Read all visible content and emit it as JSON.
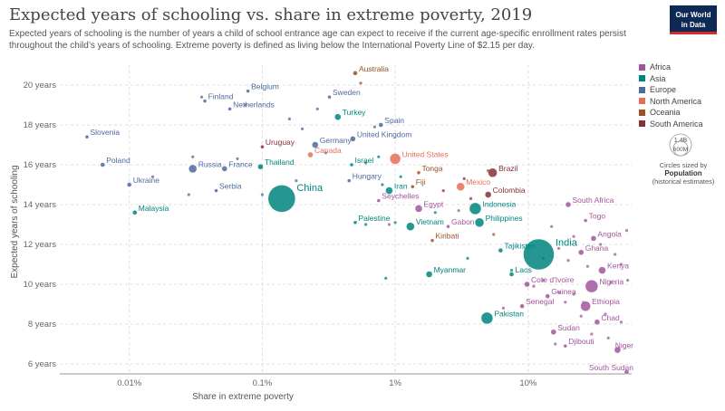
{
  "header": {
    "title": "Expected years of schooling vs. share in extreme poverty, 2019",
    "subtitle": "Expected years of schooling is the number of years a child of school entrance age can expect to receive if the current age-specific enrollment rates persist throughout the child’s years of schooling. Extreme poverty is defined as living below the International Poverty Line of $2.15 per day.",
    "logo_line1": "Our World",
    "logo_line2": "in Data"
  },
  "legend": {
    "items": [
      {
        "label": "Africa",
        "color": "#a2559c"
      },
      {
        "label": "Asia",
        "color": "#00847e"
      },
      {
        "label": "Europe",
        "color": "#4c6a9c"
      },
      {
        "label": "North America",
        "color": "#e56e5a"
      },
      {
        "label": "Oceania",
        "color": "#9a5129"
      },
      {
        "label": "South America",
        "color": "#883039"
      }
    ],
    "size_big": "1.4B",
    "size_small": "600M",
    "size_caption": "Circles sized by",
    "size_title": "Population",
    "size_sub": "(historical estimates)"
  },
  "chart_data": {
    "type": "scatter",
    "xscale": "log",
    "xlabel": "Share in extreme poverty",
    "ylabel": "Expected years of schooling",
    "xlim": [
      0.003,
      60
    ],
    "ylim": [
      5.5,
      21
    ],
    "xticks": [
      {
        "v": 0.01,
        "label": "0.01%"
      },
      {
        "v": 0.1,
        "label": "0.1%"
      },
      {
        "v": 1,
        "label": "1%"
      },
      {
        "v": 10,
        "label": "10%"
      }
    ],
    "yticks": [
      {
        "v": 6,
        "label": "6 years"
      },
      {
        "v": 8,
        "label": "8 years"
      },
      {
        "v": 10,
        "label": "10 years"
      },
      {
        "v": 12,
        "label": "12 years"
      },
      {
        "v": 14,
        "label": "14 years"
      },
      {
        "v": 16,
        "label": "16 years"
      },
      {
        "v": 18,
        "label": "18 years"
      },
      {
        "v": 20,
        "label": "20 years"
      }
    ],
    "grid": true,
    "points": [
      {
        "name": "Australia",
        "x": 0.5,
        "y": 20.6,
        "r": "Oceania",
        "s": 2.5
      },
      {
        "name": "Belgium",
        "x": 0.078,
        "y": 19.7,
        "r": "Europe",
        "s": 2
      },
      {
        "name": "Sweden",
        "x": 0.32,
        "y": 19.4,
        "r": "Europe",
        "s": 2
      },
      {
        "name": "Finland",
        "x": 0.037,
        "y": 19.2,
        "r": "Europe",
        "s": 2
      },
      {
        "name": "Netherlands",
        "x": 0.057,
        "y": 18.8,
        "r": "Europe",
        "s": 2
      },
      {
        "name": "Turkey",
        "x": 0.37,
        "y": 18.4,
        "r": "Asia",
        "s": 3.5
      },
      {
        "name": "Spain",
        "x": 0.78,
        "y": 18.0,
        "r": "Europe",
        "s": 2.5
      },
      {
        "name": "Slovenia",
        "x": 0.0048,
        "y": 17.4,
        "r": "Europe",
        "s": 2
      },
      {
        "name": "United Kingdom",
        "x": 0.48,
        "y": 17.3,
        "r": "Europe",
        "s": 3
      },
      {
        "name": "Germany",
        "x": 0.25,
        "y": 17.0,
        "r": "Europe",
        "s": 3.5
      },
      {
        "name": "Uruguay",
        "x": 0.1,
        "y": 16.9,
        "r": "South America",
        "s": 2
      },
      {
        "name": "Canada",
        "x": 0.23,
        "y": 16.5,
        "r": "North America",
        "s": 3
      },
      {
        "name": "United States",
        "x": 1.0,
        "y": 16.3,
        "r": "North America",
        "s": 6
      },
      {
        "name": "Israel",
        "x": 0.47,
        "y": 16.0,
        "r": "Asia",
        "s": 2
      },
      {
        "name": "Poland",
        "x": 0.0063,
        "y": 16.0,
        "r": "Europe",
        "s": 2.5
      },
      {
        "name": "Russia",
        "x": 0.03,
        "y": 15.8,
        "r": "Europe",
        "s": 4.5
      },
      {
        "name": "France",
        "x": 0.052,
        "y": 15.8,
        "r": "Europe",
        "s": 3
      },
      {
        "name": "Thailand",
        "x": 0.097,
        "y": 15.9,
        "r": "Asia",
        "s": 3
      },
      {
        "name": "Brazil",
        "x": 5.4,
        "y": 15.6,
        "r": "South America",
        "s": 5
      },
      {
        "name": "Tonga",
        "x": 1.5,
        "y": 15.6,
        "r": "Oceania",
        "s": 2
      },
      {
        "name": "Hungary",
        "x": 0.45,
        "y": 15.2,
        "r": "Europe",
        "s": 2
      },
      {
        "name": "Ukraine",
        "x": 0.01,
        "y": 15.0,
        "r": "Europe",
        "s": 2.5
      },
      {
        "name": "Fiji",
        "x": 1.35,
        "y": 14.9,
        "r": "Oceania",
        "s": 2
      },
      {
        "name": "Mexico",
        "x": 3.1,
        "y": 14.9,
        "r": "North America",
        "s": 4.5
      },
      {
        "name": "Serbia",
        "x": 0.045,
        "y": 14.7,
        "r": "Europe",
        "s": 2
      },
      {
        "name": "Iran",
        "x": 0.9,
        "y": 14.7,
        "r": "Asia",
        "s": 4
      },
      {
        "name": "Colombia",
        "x": 5.0,
        "y": 14.5,
        "r": "South America",
        "s": 3.5
      },
      {
        "name": "China",
        "x": 0.14,
        "y": 14.3,
        "r": "Asia",
        "s": 15
      },
      {
        "name": "Seychelles",
        "x": 0.75,
        "y": 14.2,
        "r": "Africa",
        "s": 2
      },
      {
        "name": "South Africa",
        "x": 20,
        "y": 14.0,
        "r": "Africa",
        "s": 3
      },
      {
        "name": "Egypt",
        "x": 1.5,
        "y": 13.8,
        "r": "Africa",
        "s": 4
      },
      {
        "name": "Indonesia",
        "x": 4.0,
        "y": 13.8,
        "r": "Asia",
        "s": 6.5
      },
      {
        "name": "Malaysia",
        "x": 0.011,
        "y": 13.6,
        "r": "Asia",
        "s": 2.5
      },
      {
        "name": "Philippines",
        "x": 4.3,
        "y": 13.1,
        "r": "Asia",
        "s": 5
      },
      {
        "name": "Palestine",
        "x": 0.5,
        "y": 13.1,
        "r": "Asia",
        "s": 2
      },
      {
        "name": "Vietnam",
        "x": 1.3,
        "y": 12.9,
        "r": "Asia",
        "s": 4.5
      },
      {
        "name": "Gabon",
        "x": 2.5,
        "y": 12.9,
        "r": "Africa",
        "s": 2
      },
      {
        "name": "Togo",
        "x": 27,
        "y": 13.2,
        "r": "Africa",
        "s": 2
      },
      {
        "name": "India",
        "x": 12,
        "y": 11.5,
        "r": "Asia",
        "s": 17
      },
      {
        "name": "Angola",
        "x": 31,
        "y": 12.3,
        "r": "Africa",
        "s": 3
      },
      {
        "name": "Kiribati",
        "x": 1.9,
        "y": 12.2,
        "r": "Oceania",
        "s": 2
      },
      {
        "name": "Tajikistan",
        "x": 6.2,
        "y": 11.7,
        "r": "Asia",
        "s": 2.5
      },
      {
        "name": "Ghana",
        "x": 25,
        "y": 11.6,
        "r": "Africa",
        "s": 3
      },
      {
        "name": "Kenya",
        "x": 36,
        "y": 10.7,
        "r": "Africa",
        "s": 4
      },
      {
        "name": "Myanmar",
        "x": 1.8,
        "y": 10.5,
        "r": "Asia",
        "s": 3.5
      },
      {
        "name": "Laos",
        "x": 7.5,
        "y": 10.5,
        "r": "Asia",
        "s": 2.5
      },
      {
        "name": "Cote d'Ivoire",
        "x": 9.8,
        "y": 10.0,
        "r": "Africa",
        "s": 3
      },
      {
        "name": "Nigeria",
        "x": 30,
        "y": 9.9,
        "r": "Africa",
        "s": 7
      },
      {
        "name": "Guinea",
        "x": 14,
        "y": 9.4,
        "r": "Africa",
        "s": 2.5
      },
      {
        "name": "Ethiopia",
        "x": 27,
        "y": 8.9,
        "r": "Africa",
        "s": 5.5
      },
      {
        "name": "Senegal",
        "x": 9.0,
        "y": 8.9,
        "r": "Africa",
        "s": 2.5
      },
      {
        "name": "Pakistan",
        "x": 4.9,
        "y": 8.3,
        "r": "Asia",
        "s": 6.5
      },
      {
        "name": "Chad",
        "x": 33,
        "y": 8.1,
        "r": "Africa",
        "s": 3
      },
      {
        "name": "Sudan",
        "x": 15.5,
        "y": 7.6,
        "r": "Africa",
        "s": 3
      },
      {
        "name": "Djibouti",
        "x": 19,
        "y": 6.9,
        "r": "Africa",
        "s": 2
      },
      {
        "name": "Niger",
        "x": 47,
        "y": 6.7,
        "r": "Africa",
        "s": 3.5
      },
      {
        "name": "South Sudan",
        "x": 55,
        "y": 5.6,
        "r": "Africa",
        "s": 2.5
      }
    ],
    "unlabeled": [
      {
        "x": 0.55,
        "y": 20.1,
        "r": "Oceania"
      },
      {
        "x": 0.035,
        "y": 19.4,
        "r": "Europe"
      },
      {
        "x": 0.075,
        "y": 19.0,
        "r": "Europe"
      },
      {
        "x": 0.16,
        "y": 18.3,
        "r": "Europe"
      },
      {
        "x": 0.26,
        "y": 18.8,
        "r": "Europe"
      },
      {
        "x": 0.7,
        "y": 17.9,
        "r": "Europe"
      },
      {
        "x": 0.2,
        "y": 17.8,
        "r": "Europe"
      },
      {
        "x": 0.03,
        "y": 16.4,
        "r": "Europe"
      },
      {
        "x": 0.065,
        "y": 16.3,
        "r": "Europe"
      },
      {
        "x": 0.3,
        "y": 16.6,
        "r": "Europe"
      },
      {
        "x": 0.6,
        "y": 16.1,
        "r": "Asia"
      },
      {
        "x": 0.75,
        "y": 16.4,
        "r": "Asia"
      },
      {
        "x": 0.18,
        "y": 15.2,
        "r": "Europe"
      },
      {
        "x": 0.015,
        "y": 15.4,
        "r": "Europe"
      },
      {
        "x": 0.028,
        "y": 14.5,
        "r": "Europe"
      },
      {
        "x": 0.1,
        "y": 14.5,
        "r": "Europe"
      },
      {
        "x": 0.8,
        "y": 15.0,
        "r": "Asia"
      },
      {
        "x": 1.1,
        "y": 15.4,
        "r": "Asia"
      },
      {
        "x": 2.3,
        "y": 14.7,
        "r": "South America"
      },
      {
        "x": 3.3,
        "y": 15.3,
        "r": "South America"
      },
      {
        "x": 5.0,
        "y": 15.7,
        "r": "South America"
      },
      {
        "x": 3.7,
        "y": 14.3,
        "r": "South America"
      },
      {
        "x": 0.9,
        "y": 13.0,
        "r": "Africa"
      },
      {
        "x": 1.0,
        "y": 13.1,
        "r": "Asia"
      },
      {
        "x": 2.0,
        "y": 13.6,
        "r": "Asia"
      },
      {
        "x": 0.6,
        "y": 13.0,
        "r": "Asia"
      },
      {
        "x": 3.0,
        "y": 13.7,
        "r": "Africa"
      },
      {
        "x": 15,
        "y": 12.9,
        "r": "Africa"
      },
      {
        "x": 22,
        "y": 12.4,
        "r": "Africa"
      },
      {
        "x": 35,
        "y": 12.0,
        "r": "Africa"
      },
      {
        "x": 45,
        "y": 11.5,
        "r": "Africa"
      },
      {
        "x": 55,
        "y": 12.7,
        "r": "Africa"
      },
      {
        "x": 17,
        "y": 11.8,
        "r": "Africa"
      },
      {
        "x": 13,
        "y": 11.3,
        "r": "Asia"
      },
      {
        "x": 20,
        "y": 11.2,
        "r": "Africa"
      },
      {
        "x": 28,
        "y": 10.9,
        "r": "Africa"
      },
      {
        "x": 50,
        "y": 11.0,
        "r": "Africa"
      },
      {
        "x": 42,
        "y": 10.1,
        "r": "Africa"
      },
      {
        "x": 56,
        "y": 10.2,
        "r": "Africa"
      },
      {
        "x": 17,
        "y": 9.6,
        "r": "Africa"
      },
      {
        "x": 22,
        "y": 9.5,
        "r": "Africa"
      },
      {
        "x": 26,
        "y": 9.1,
        "r": "Africa"
      },
      {
        "x": 19,
        "y": 9.1,
        "r": "Africa"
      },
      {
        "x": 11,
        "y": 9.9,
        "r": "Africa"
      },
      {
        "x": 13,
        "y": 10.2,
        "r": "Africa"
      },
      {
        "x": 38,
        "y": 8.5,
        "r": "Africa"
      },
      {
        "x": 25,
        "y": 8.4,
        "r": "Africa"
      },
      {
        "x": 50,
        "y": 8.1,
        "r": "Africa"
      },
      {
        "x": 6.5,
        "y": 8.8,
        "r": "Africa"
      },
      {
        "x": 30,
        "y": 7.5,
        "r": "Africa"
      },
      {
        "x": 40,
        "y": 7.3,
        "r": "Africa"
      },
      {
        "x": 16,
        "y": 7.0,
        "r": "Africa"
      },
      {
        "x": 5.5,
        "y": 12.5,
        "r": "Oceania"
      },
      {
        "x": 0.85,
        "y": 10.3,
        "r": "Asia"
      },
      {
        "x": 3.5,
        "y": 11.3,
        "r": "Asia"
      },
      {
        "x": 7.5,
        "y": 10.7,
        "r": "Asia"
      }
    ]
  }
}
